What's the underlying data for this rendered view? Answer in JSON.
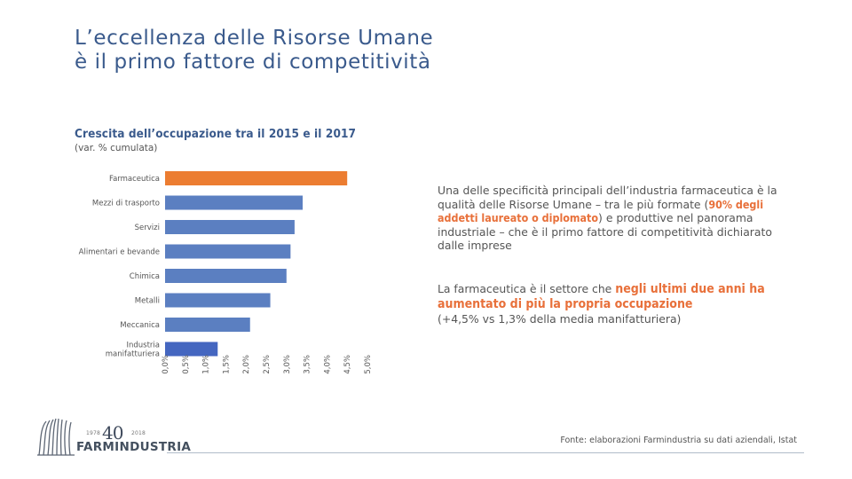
{
  "title": {
    "line1": "L’eccellenza delle Risorse Umane",
    "line2": "è il primo fattore di competitività"
  },
  "chart_data": {
    "type": "bar",
    "orientation": "horizontal",
    "title": "Crescita dell’occupazione tra il 2015 e il 2017",
    "subtitle": "(var. % cumulata)",
    "categories": [
      "Farmaceutica",
      "Mezzi di trasporto",
      "Servizi",
      "Alimentari e bevande",
      "Chimica",
      "Metalli",
      "Meccanica",
      "Industria manifatturiera"
    ],
    "values": [
      4.5,
      3.4,
      3.2,
      3.1,
      3.0,
      2.6,
      2.1,
      1.3
    ],
    "colors": [
      "#ec7d31",
      "#5b7fc1",
      "#5b7fc1",
      "#5b7fc1",
      "#5b7fc1",
      "#5b7fc1",
      "#5b7fc1",
      "#4466c0"
    ],
    "xlim": [
      0,
      5
    ],
    "xticks": [
      "0,0%",
      "0,5%",
      "1,0%",
      "1,5%",
      "2,0%",
      "2,5%",
      "3,0%",
      "3,5%",
      "4,0%",
      "4,5%",
      "5,0%"
    ],
    "grid": false
  },
  "panel": {
    "p1_a": "Una delle specificità principali dell’industria farmaceutica è la qualità delle Risorse Umane – tra le più formate (",
    "p1_hl": "90% degli addetti laureato o diplomato",
    "p1_b": ") e produttive nel panorama industriale – che è il primo fattore di competitività dichiarato dalle imprese",
    "p2_a": "La farmaceutica è il settore che ",
    "p2_hl": "negli ultimi due anni ha aumentato di più la propria occupazione",
    "p2_b": "(+4,5% vs 1,3% della media manifatturiera)"
  },
  "footer": {
    "source": "Fonte: elaborazioni Farmindustria su dati aziendali, Istat"
  },
  "logo": {
    "year_start": "1978",
    "number": "40",
    "year_end": "2018",
    "name": "FARMINDUSTRIA"
  },
  "colors": {
    "title": "#3a5a8c",
    "accent": "#e8703a",
    "bar": "#5b7fc1",
    "bar_highlight": "#ec7d31"
  }
}
